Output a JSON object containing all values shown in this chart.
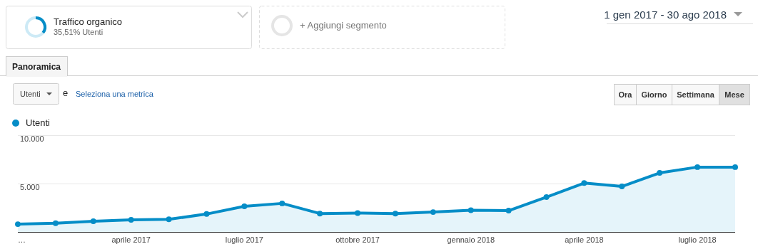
{
  "chart_data": {
    "type": "area",
    "categories": [
      "…",
      null,
      null,
      "aprile 2017",
      null,
      null,
      "luglio 2017",
      null,
      null,
      "ottobre 2017",
      null,
      null,
      "gennaio 2018",
      null,
      null,
      "aprile 2018",
      null,
      null,
      "luglio 2018",
      null
    ],
    "series": [
      {
        "name": "Utenti",
        "color": "#058dc7",
        "values": [
          800,
          900,
          1100,
          1250,
          1300,
          1850,
          2650,
          2950,
          1900,
          1950,
          1900,
          2050,
          2250,
          2200,
          3600,
          5050,
          4700,
          6100,
          6700,
          6700
        ]
      }
    ],
    "ylim": [
      0,
      10000
    ],
    "yticks": [
      {
        "value": 0,
        "label": null
      },
      {
        "value": 5000,
        "label": "5.000"
      },
      {
        "value": 10000,
        "label": "10.000"
      }
    ],
    "grid": "y",
    "legend": "top left",
    "marker": "circle",
    "line_style": "solid",
    "annotations": [
      "Traffico organico",
      "35,51% Utenti",
      "+ Aggiungi segmento",
      "1 gen 2017 - 30 ago 2018",
      "Panoramica",
      "Utenti",
      "e",
      "Seleziona una metrica",
      "Ora",
      "Giorno",
      "Settimana",
      "Mese"
    ]
  }
}
